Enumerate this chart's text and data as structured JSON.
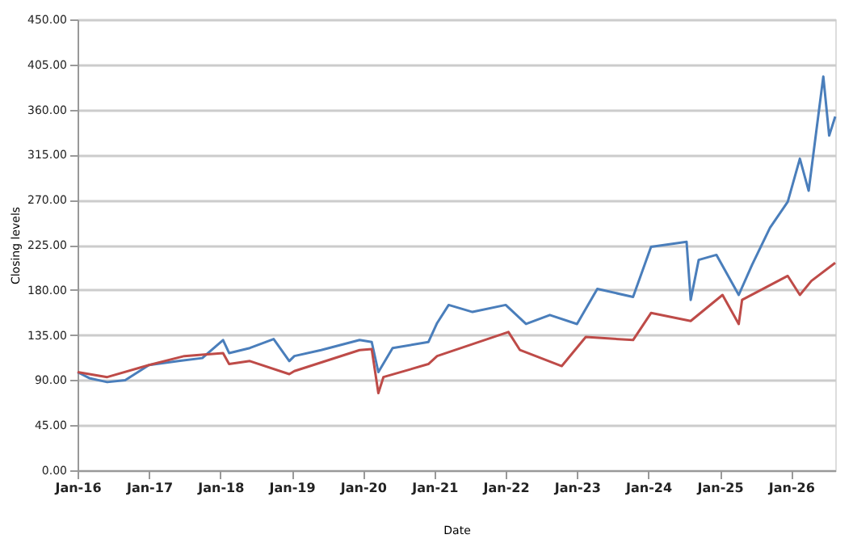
{
  "chart_data": {
    "type": "line",
    "xlabel": "Date",
    "ylabel": "Closing levels",
    "xlim": [
      "2016-01-01",
      "2026-08-15"
    ],
    "xticks": [
      {
        "value": "2016-01-01",
        "label": "Jan-16"
      },
      {
        "value": "2017-01-01",
        "label": "Jan-17"
      },
      {
        "value": "2018-01-01",
        "label": "Jan-18"
      },
      {
        "value": "2019-01-01",
        "label": "Jan-19"
      },
      {
        "value": "2020-01-01",
        "label": "Jan-20"
      },
      {
        "value": "2021-01-01",
        "label": "Jan-21"
      },
      {
        "value": "2022-01-01",
        "label": "Jan-22"
      },
      {
        "value": "2023-01-01",
        "label": "Jan-23"
      },
      {
        "value": "2024-01-01",
        "label": "Jan-24"
      },
      {
        "value": "2025-01-01",
        "label": "Jan-25"
      },
      {
        "value": "2026-01-01",
        "label": "Jan-26"
      }
    ],
    "ylim": [
      0,
      450
    ],
    "yticks": [
      {
        "value": 0,
        "label": "0.00"
      },
      {
        "value": 45,
        "label": "45.00"
      },
      {
        "value": 90,
        "label": "90.00"
      },
      {
        "value": 135,
        "label": "135.00"
      },
      {
        "value": 180,
        "label": "180.00"
      },
      {
        "value": 225,
        "label": "225.00"
      },
      {
        "value": 270,
        "label": "270.00"
      },
      {
        "value": 315,
        "label": "315.00"
      },
      {
        "value": 360,
        "label": "360.00"
      },
      {
        "value": 405,
        "label": "405.00"
      },
      {
        "value": 450,
        "label": "450.00"
      }
    ],
    "grid": "y",
    "marker": "none",
    "line_style": "solid",
    "series": [
      {
        "color": "#4a7ebb",
        "x": [
          "2016-01-01",
          "2016-03-01",
          "2016-06-01",
          "2016-09-01",
          "2017-01-01",
          "2017-06-01",
          "2017-10-01",
          "2018-01-15",
          "2018-02-15",
          "2018-06-01",
          "2018-10-01",
          "2018-12-20",
          "2019-01-15",
          "2019-06-01",
          "2019-12-15",
          "2020-02-15",
          "2020-03-20",
          "2020-06-01",
          "2020-12-01",
          "2021-01-15",
          "2021-03-15",
          "2021-07-15",
          "2022-01-01",
          "2022-04-15",
          "2022-08-15",
          "2023-01-01",
          "2023-04-15",
          "2023-10-15",
          "2024-01-15",
          "2024-07-15",
          "2024-08-05",
          "2024-09-15",
          "2024-12-15",
          "2025-04-08",
          "2025-06-15",
          "2025-09-15",
          "2025-12-15",
          "2026-02-15",
          "2026-04-01",
          "2026-06-15",
          "2026-07-15",
          "2026-08-15"
        ],
        "values": [
          98,
          92,
          88,
          90,
          105,
          109,
          112,
          130,
          117,
          122,
          131,
          109,
          114,
          120,
          130,
          128,
          98,
          122,
          128,
          147,
          165,
          158,
          165,
          146,
          155,
          146,
          181,
          173,
          223,
          228,
          170,
          210,
          215,
          175,
          205,
          242,
          268,
          311,
          279,
          393,
          334,
          353
        ]
      },
      {
        "color": "#be4b48",
        "x": [
          "2016-01-01",
          "2016-06-01",
          "2017-01-01",
          "2017-07-01",
          "2018-01-15",
          "2018-02-15",
          "2018-06-01",
          "2018-12-20",
          "2019-01-15",
          "2019-12-15",
          "2020-02-15",
          "2020-03-20",
          "2020-04-15",
          "2020-12-01",
          "2021-01-15",
          "2022-01-15",
          "2022-03-15",
          "2022-10-15",
          "2023-02-15",
          "2023-10-15",
          "2024-01-15",
          "2024-08-05",
          "2025-01-15",
          "2025-04-08",
          "2025-04-25",
          "2025-12-15",
          "2026-02-15",
          "2026-04-15",
          "2026-08-15"
        ],
        "values": [
          98,
          93,
          105,
          114,
          117,
          106,
          109,
          96,
          99,
          120,
          121,
          77,
          93,
          106,
          114,
          138,
          120,
          104,
          133,
          130,
          157,
          149,
          175,
          146,
          170,
          194,
          175,
          189,
          207
        ]
      }
    ]
  }
}
